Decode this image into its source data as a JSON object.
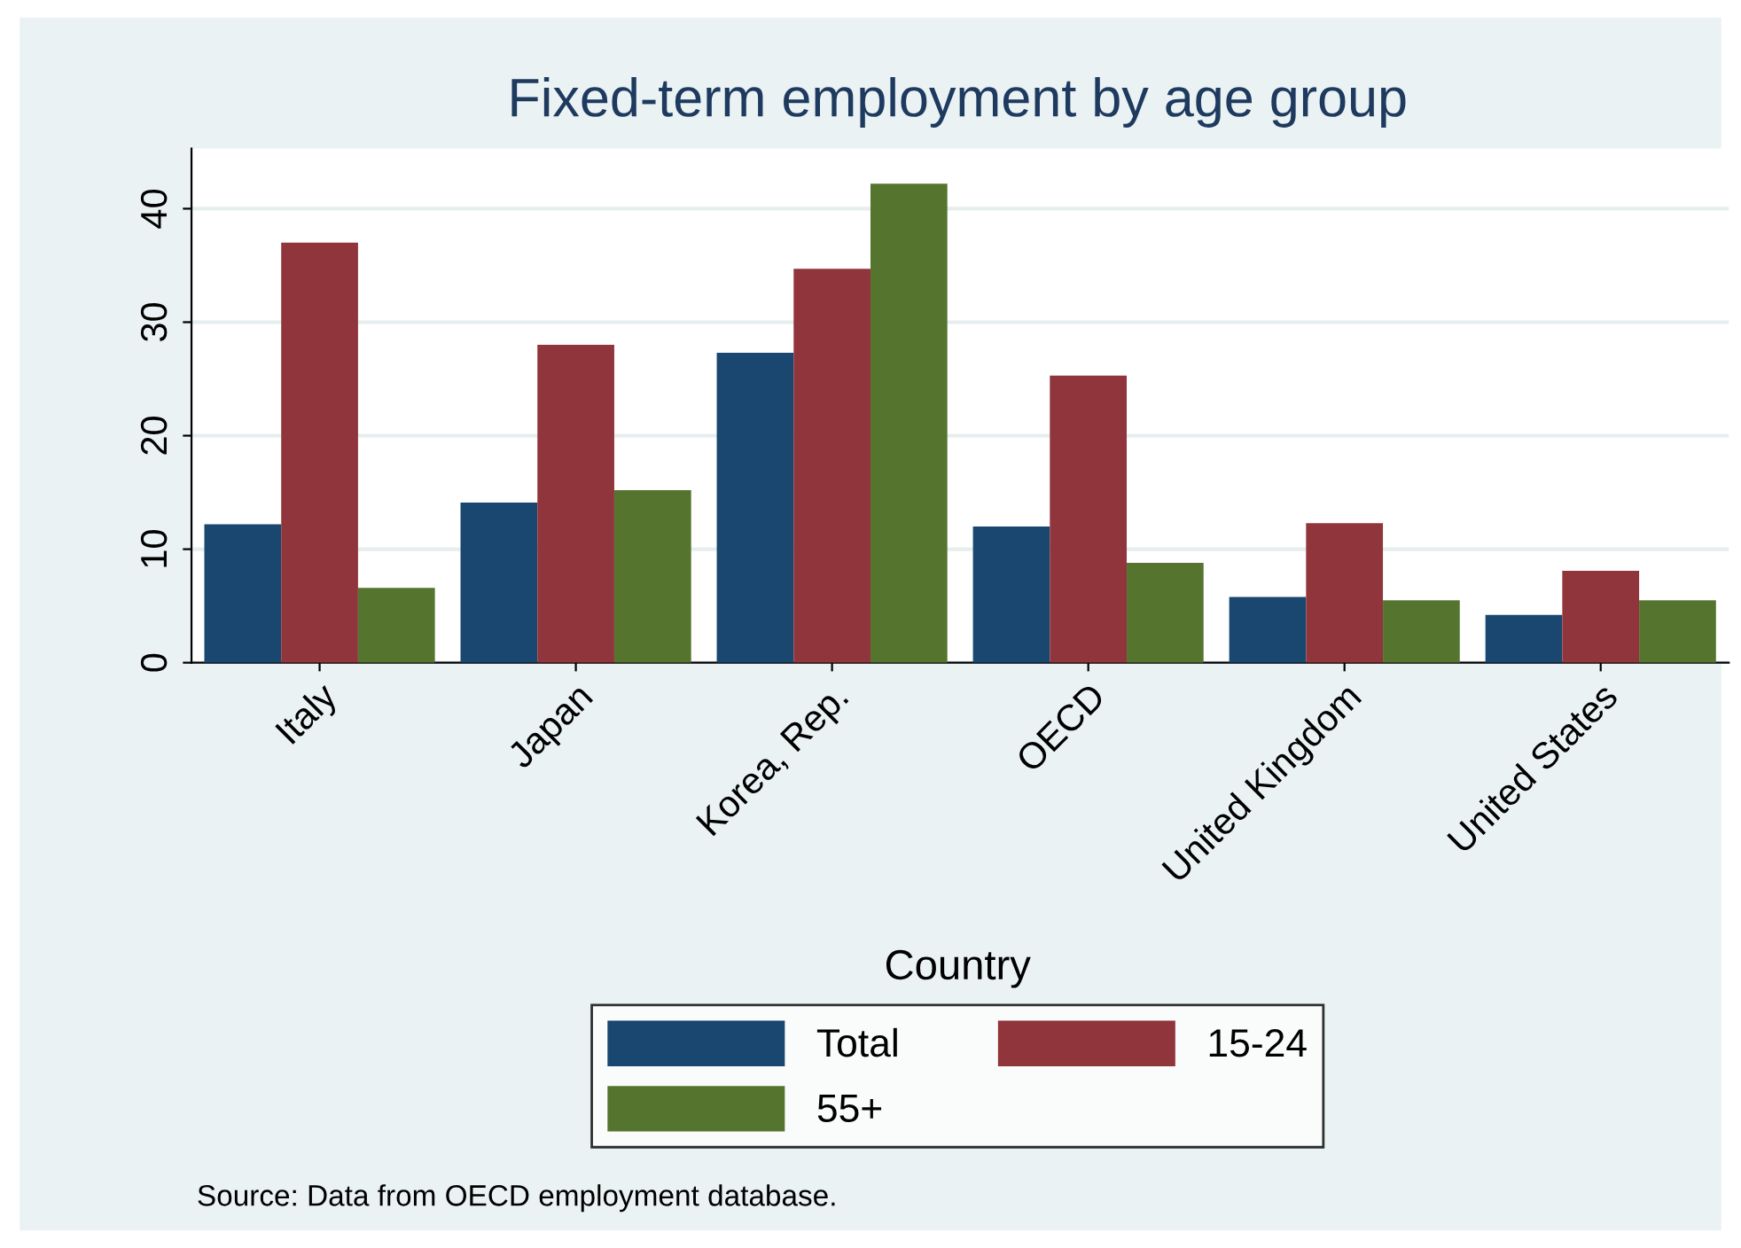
{
  "chart_data": {
    "type": "bar",
    "title": "Fixed-term employment by age group",
    "xlabel": "Country",
    "categories": [
      "Italy",
      "Japan",
      "Korea, Rep.",
      "OECD",
      "United Kingdom",
      "United States"
    ],
    "series": [
      {
        "name": "Total",
        "color": "#1a476f",
        "values": [
          12.2,
          14.1,
          27.3,
          12.0,
          5.8,
          4.2
        ]
      },
      {
        "name": "15-24",
        "color": "#90353b",
        "values": [
          37.0,
          28.0,
          34.7,
          25.3,
          12.3,
          8.1
        ]
      },
      {
        "name": "55+",
        "color": "#55752f",
        "values": [
          6.6,
          15.2,
          42.2,
          8.8,
          5.5,
          5.5
        ]
      }
    ],
    "ylim": [
      0,
      45.3
    ],
    "yticks": [
      0,
      10,
      20,
      30,
      40
    ],
    "grid": "y",
    "legend": "bottom",
    "annotations": [
      "Source: Data from OECD employment database."
    ]
  }
}
